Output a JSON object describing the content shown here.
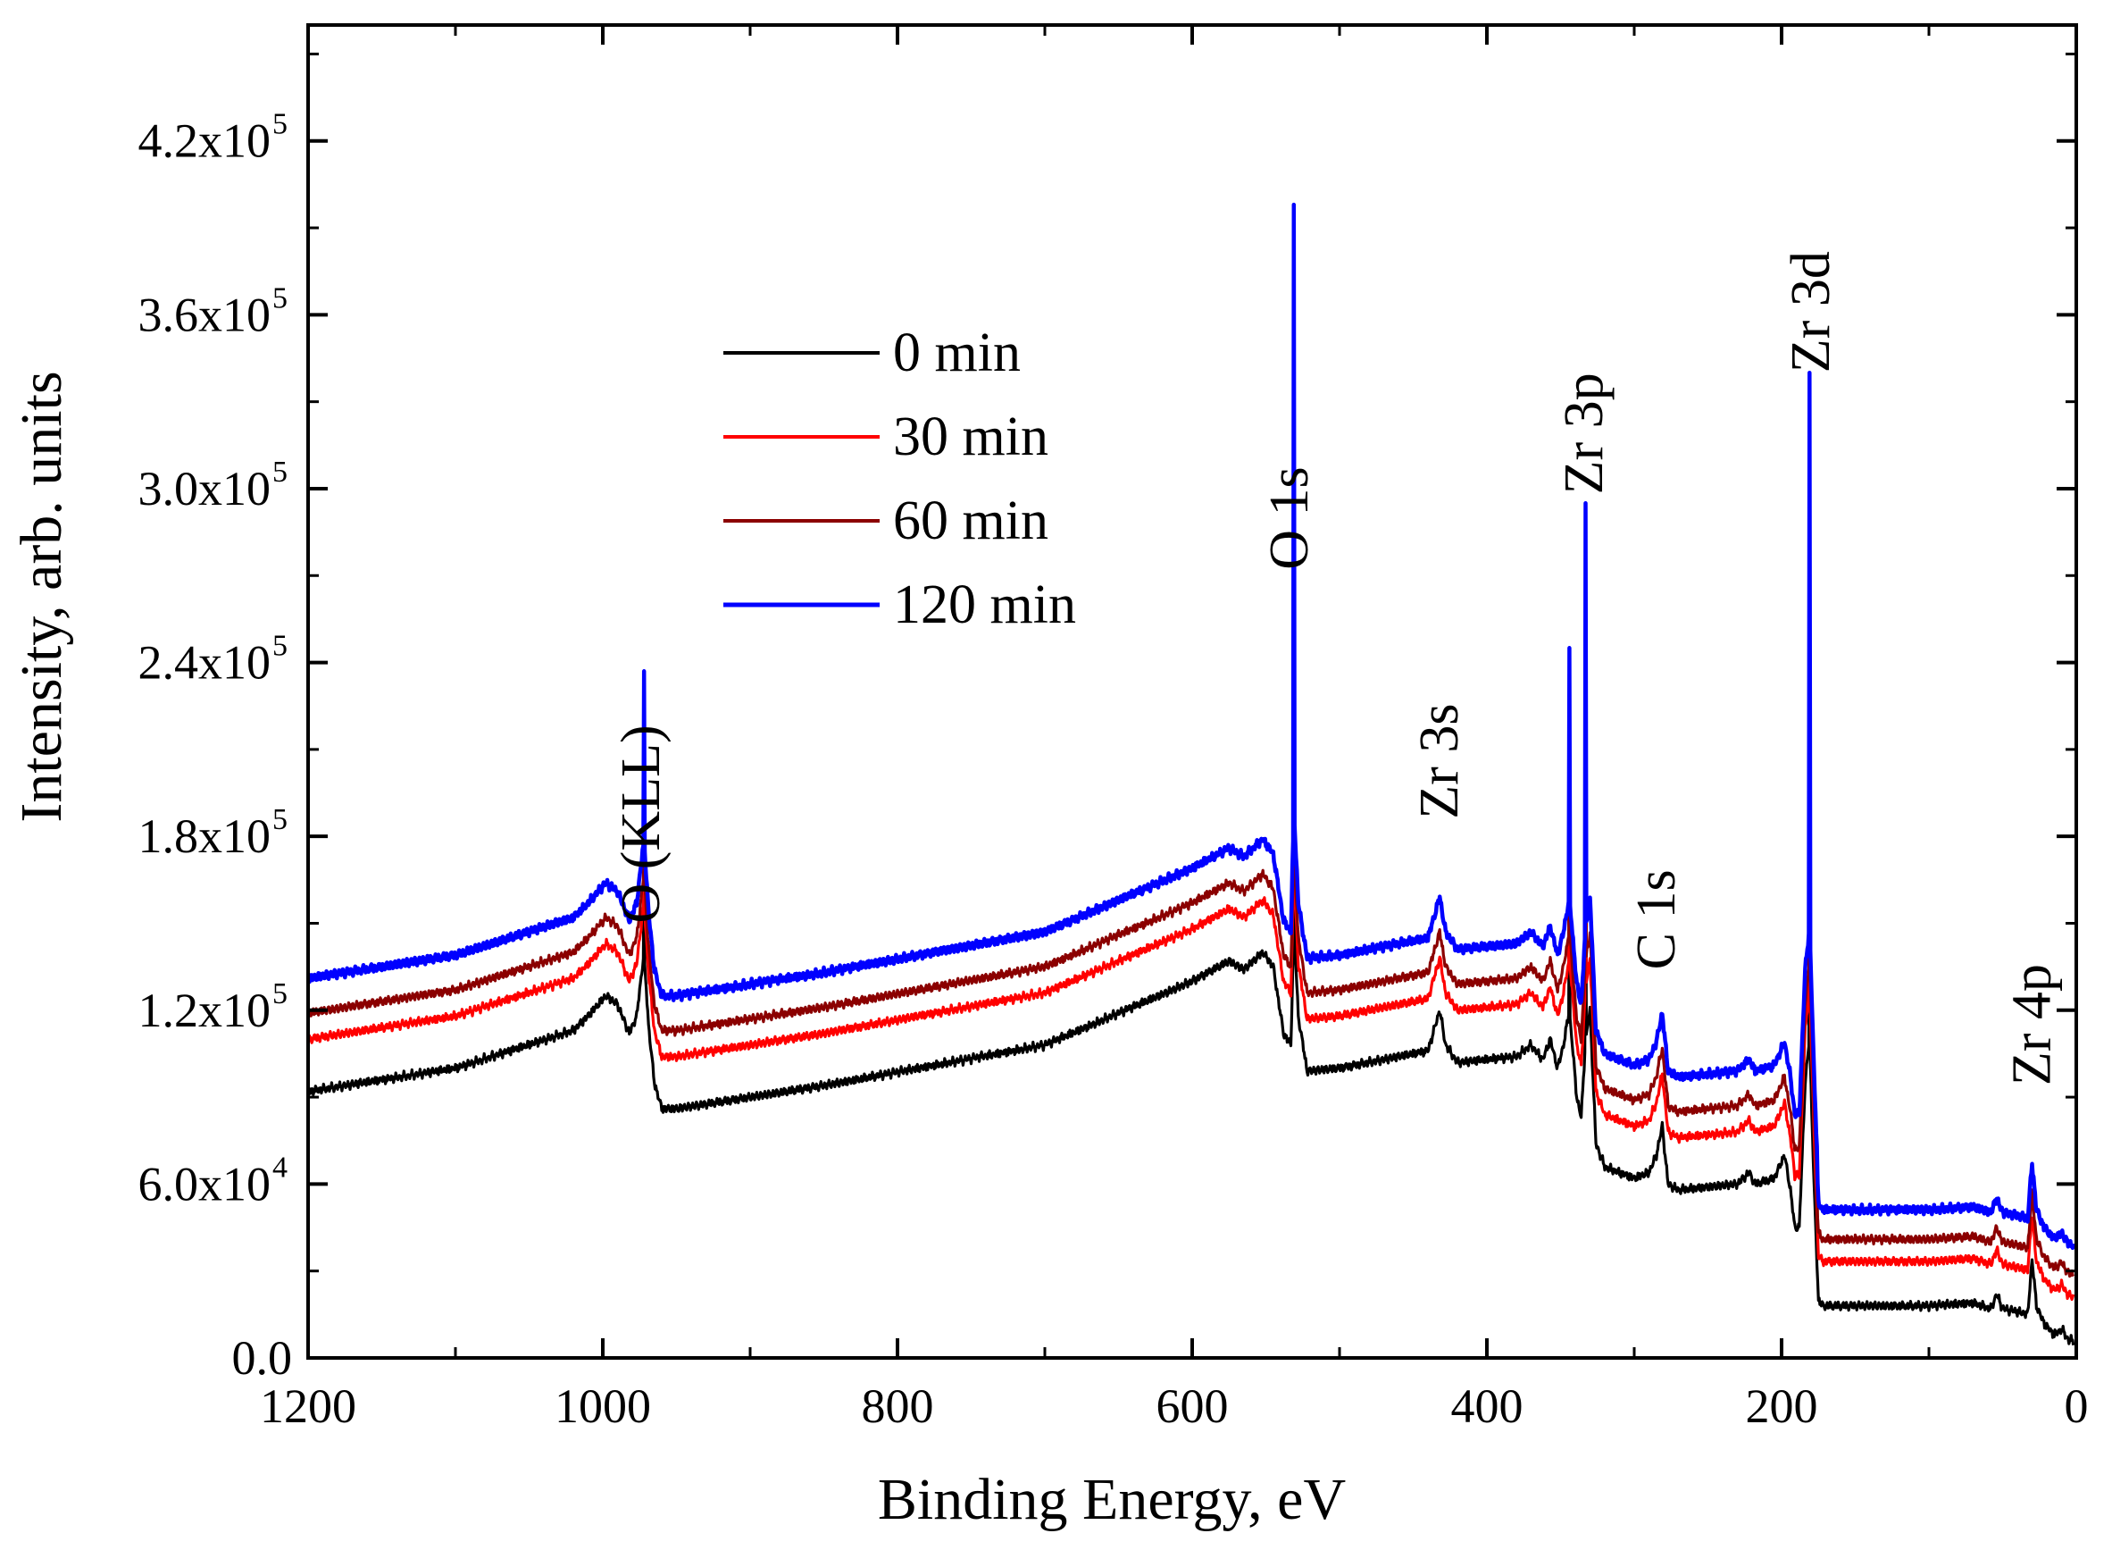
{
  "chart_data": {
    "type": "line",
    "title": "",
    "xlabel": "Binding Energy, eV",
    "ylabel": "Intensity, arb. units",
    "xlim": [
      1200,
      0
    ],
    "ylim": [
      0,
      460000
    ],
    "x_reversed": true,
    "grid": false,
    "x_ticks": [
      1200,
      1000,
      800,
      600,
      400,
      200,
      0
    ],
    "x_tick_labels": [
      "1200",
      "1000",
      "800",
      "600",
      "400",
      "200",
      "0"
    ],
    "y_ticks": [
      0,
      60000,
      120000,
      180000,
      240000,
      300000,
      360000,
      420000
    ],
    "y_tick_labels": [
      {
        "mantissa": "0.0",
        "exp": ""
      },
      {
        "mantissa": "6.0x10",
        "exp": "4"
      },
      {
        "mantissa": "1.2x10",
        "exp": "5"
      },
      {
        "mantissa": "1.8x10",
        "exp": "5"
      },
      {
        "mantissa": "2.4x10",
        "exp": "5"
      },
      {
        "mantissa": "3.0x10",
        "exp": "5"
      },
      {
        "mantissa": "3.6x10",
        "exp": "5"
      },
      {
        "mantissa": "4.2x10",
        "exp": "5"
      }
    ],
    "legend_position": "upper-center",
    "series": [
      {
        "name": "0 min",
        "color": "#000000",
        "offset": 0,
        "peak_scale": 0.66
      },
      {
        "name": "30 min",
        "color": "#ff0000",
        "offset": 18000,
        "peak_scale": 0.74
      },
      {
        "name": "60 min",
        "color": "#8b0000",
        "offset": 27000,
        "peak_scale": 0.8
      },
      {
        "name": "120 min",
        "color": "#0000ff",
        "offset": 39000,
        "peak_scale": 1.0
      }
    ],
    "base_curve": [
      [
        1200,
        92000
      ],
      [
        1100,
        100000
      ],
      [
        1020,
        113000
      ],
      [
        1010,
        118000
      ],
      [
        998,
        125000
      ],
      [
        990,
        122000
      ],
      [
        982,
        112000
      ],
      [
        977,
        118000
      ],
      [
        972,
        140000
      ],
      [
        969,
        115000
      ],
      [
        965,
        95000
      ],
      [
        960,
        86000
      ],
      [
        950,
        86000
      ],
      [
        850,
        94000
      ],
      [
        700,
        108000
      ],
      [
        600,
        130000
      ],
      [
        575,
        137000
      ],
      [
        565,
        134000
      ],
      [
        552,
        140000
      ],
      [
        545,
        135000
      ],
      [
        538,
        112000
      ],
      [
        533,
        108000
      ],
      [
        531,
        150000
      ],
      [
        528,
        118000
      ],
      [
        522,
        99000
      ],
      [
        500,
        100000
      ],
      [
        440,
        106000
      ],
      [
        432,
        120000
      ],
      [
        428,
        108000
      ],
      [
        420,
        102000
      ],
      [
        380,
        104000
      ],
      [
        370,
        108000
      ],
      [
        362,
        103000
      ],
      [
        357,
        110000
      ],
      [
        352,
        100000
      ],
      [
        348,
        108000
      ],
      [
        344,
        120000
      ],
      [
        339,
        90000
      ],
      [
        336,
        83000
      ],
      [
        333,
        110000
      ],
      [
        330,
        120000
      ],
      [
        326,
        74000
      ],
      [
        320,
        66000
      ],
      [
        300,
        62000
      ],
      [
        290,
        64000
      ],
      [
        285,
        70000
      ],
      [
        281,
        80000
      ],
      [
        277,
        60000
      ],
      [
        270,
        58000
      ],
      [
        230,
        60000
      ],
      [
        222,
        64000
      ],
      [
        218,
        60000
      ],
      [
        205,
        62000
      ],
      [
        198,
        70000
      ],
      [
        194,
        58000
      ],
      [
        191,
        45000
      ],
      [
        188,
        45000
      ],
      [
        184,
        95000
      ],
      [
        181,
        110000
      ],
      [
        178,
        60000
      ],
      [
        175,
        20000
      ],
      [
        172,
        18000
      ],
      [
        100,
        18000
      ],
      [
        70,
        19000
      ],
      [
        58,
        17000
      ],
      [
        54,
        22000
      ],
      [
        50,
        17000
      ],
      [
        40,
        16000
      ],
      [
        33,
        15000
      ],
      [
        30,
        34000
      ],
      [
        27,
        18000
      ],
      [
        22,
        12000
      ],
      [
        15,
        8000
      ],
      [
        10,
        10000
      ],
      [
        5,
        6000
      ]
    ],
    "series_peaks": [
      {
        "x": 972,
        "top": 237000
      },
      {
        "x": 531,
        "top": 398000
      },
      {
        "x": 344,
        "top": 245000
      },
      {
        "x": 333,
        "top": 295000
      },
      {
        "x": 181,
        "top": 340000
      }
    ],
    "annotations": [
      {
        "text": "O (KLL)",
        "x": 974,
        "y": 150000
      },
      {
        "text": "O 1s",
        "x": 534,
        "y": 272000
      },
      {
        "text": "Zr 3s",
        "x": 432,
        "y": 186000
      },
      {
        "text": "Zr 3p",
        "x": 334,
        "y": 298000
      },
      {
        "text": "C 1s",
        "x": 285,
        "y": 134000
      },
      {
        "text": "Zr 3d",
        "x": 180,
        "y": 340000
      },
      {
        "text": "Zr 4p",
        "x": 30,
        "y": 94000
      }
    ]
  }
}
